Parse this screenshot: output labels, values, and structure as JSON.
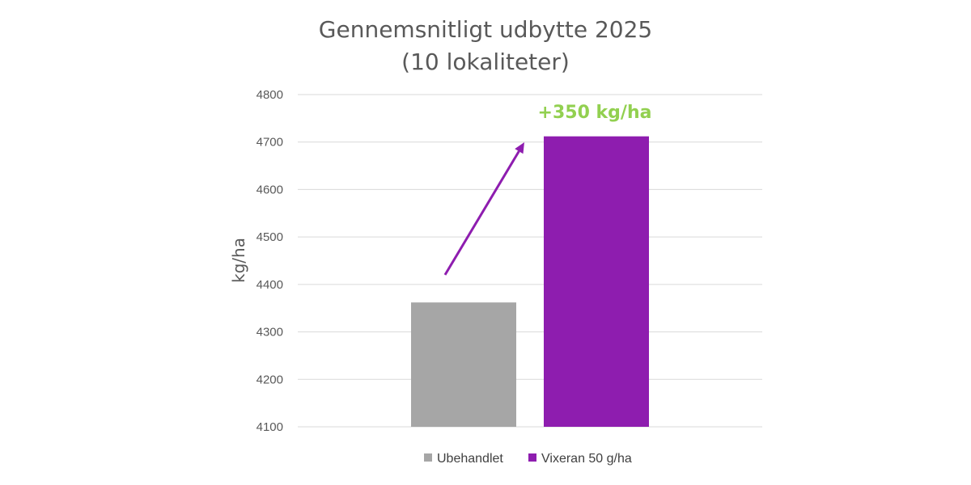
{
  "chart_data": {
    "type": "bar",
    "title": "Gennemsnitligt udbytte 2025",
    "subtitle": "(10 lokaliteter)",
    "ylabel": "kg/ha",
    "xlabel": "",
    "ylim": [
      4100,
      4800
    ],
    "yticks": [
      4100,
      4200,
      4300,
      4400,
      4500,
      4600,
      4700,
      4800
    ],
    "grid": true,
    "legend_position": "bottom",
    "series": [
      {
        "name": "Ubehandlet",
        "values": [
          4362
        ],
        "color": "#A6A6A6"
      },
      {
        "name": "Vixeran 50 g/ha",
        "values": [
          4712
        ],
        "color": "#8E1DAF"
      }
    ],
    "annotation": {
      "text": "+350 kg/ha",
      "color": "#92D050",
      "arrow_color": "#8E1DAF"
    }
  }
}
